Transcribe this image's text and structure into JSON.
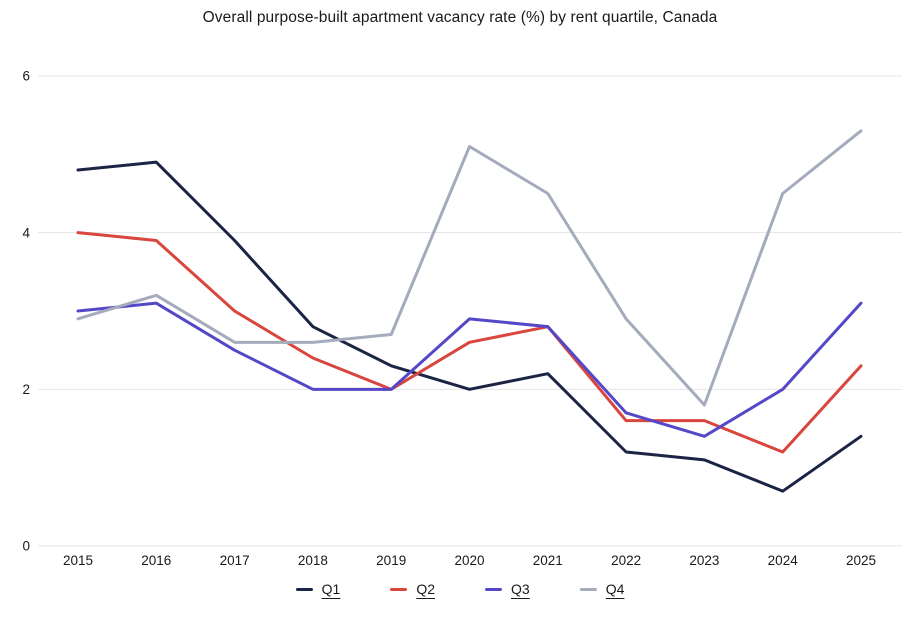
{
  "page": {
    "background": "#ffffff",
    "text_color": "#1a1a1a",
    "grid_color": "#e4e4e6"
  },
  "chart_data": {
    "type": "line",
    "title": "Overall purpose-built apartment vacancy rate (%) by rent quartile, Canada",
    "xlabel": "",
    "ylabel": "",
    "categories": [
      "2015",
      "2016",
      "2017",
      "2018",
      "2019",
      "2020",
      "2021",
      "2022",
      "2023",
      "2024",
      "2025"
    ],
    "series": [
      {
        "name": "Q1",
        "color": "#1b2444",
        "values": [
          4.8,
          4.9,
          3.9,
          2.8,
          2.3,
          2.0,
          2.2,
          1.2,
          1.1,
          0.7,
          1.4
        ]
      },
      {
        "name": "Q2",
        "color": "#d9463d",
        "values": [
          4.0,
          3.9,
          3.0,
          2.4,
          2.0,
          2.6,
          2.8,
          1.6,
          1.6,
          1.2,
          2.3
        ]
      },
      {
        "name": "Q3",
        "color": "#5448c8",
        "values": [
          3.0,
          3.1,
          2.5,
          2.0,
          2.0,
          2.9,
          2.8,
          1.7,
          1.4,
          2.0,
          3.1
        ]
      },
      {
        "name": "Q4",
        "color": "#a4abbc",
        "values": [
          2.9,
          3.2,
          2.6,
          2.6,
          2.7,
          5.1,
          4.5,
          2.9,
          1.8,
          4.5,
          5.3
        ]
      }
    ],
    "yticks": [
      "0",
      "2",
      "4",
      "6"
    ],
    "ylim": [
      0,
      6
    ],
    "grid": true,
    "legend_position": "bottom"
  }
}
